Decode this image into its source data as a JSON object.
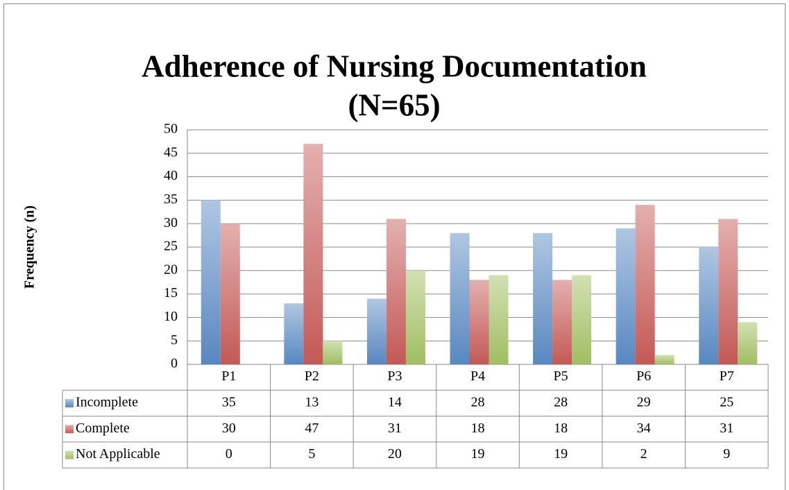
{
  "chart_data": {
    "type": "bar",
    "title": "Adherence of Nursing Documentation",
    "subtitle": "(N=65)",
    "y_label": "Frequency (n)",
    "categories": [
      "P1",
      "P2",
      "P3",
      "P4",
      "P5",
      "P6",
      "P7"
    ],
    "series": [
      {
        "name": "Incomplete",
        "color": "#4f81bd",
        "values": [
          35,
          13,
          14,
          28,
          28,
          29,
          25
        ]
      },
      {
        "name": "Complete",
        "color": "#c0504d",
        "values": [
          30,
          47,
          31,
          18,
          18,
          34,
          31
        ]
      },
      {
        "name": "Not Applicable",
        "color": "#9bbb59",
        "values": [
          0,
          5,
          20,
          19,
          19,
          2,
          9
        ]
      }
    ],
    "ylim": [
      0,
      50
    ],
    "yticks": [
      0,
      5,
      10,
      15,
      20,
      25,
      30,
      35,
      40,
      45,
      50
    ],
    "grid": true
  }
}
